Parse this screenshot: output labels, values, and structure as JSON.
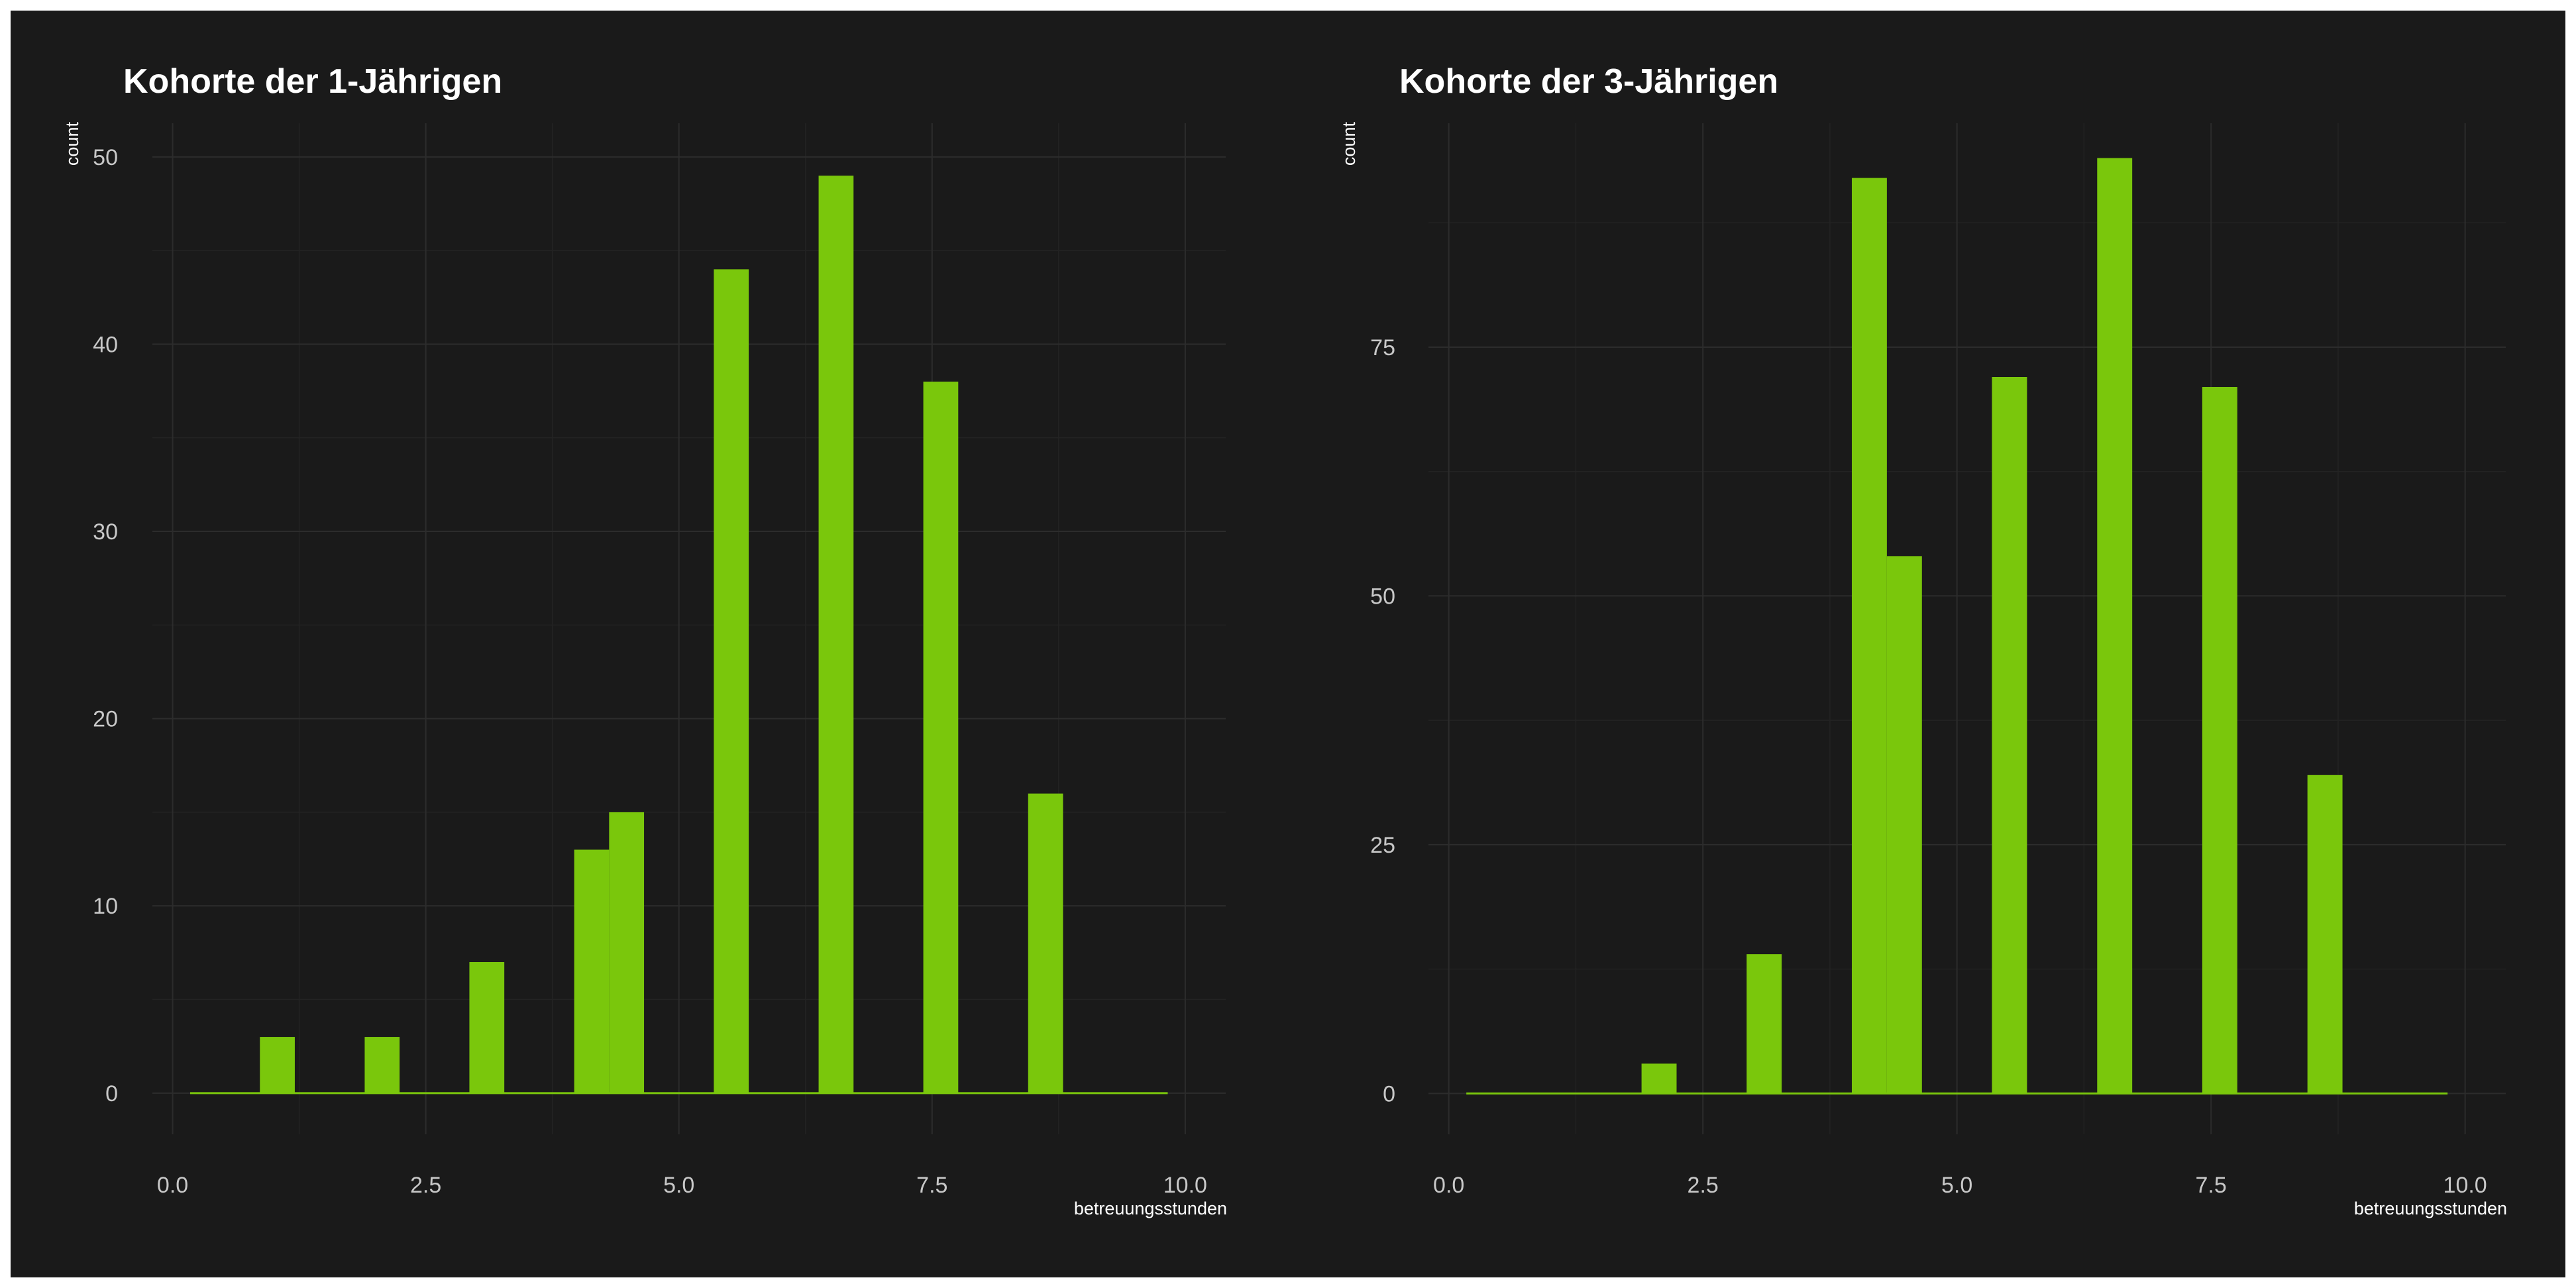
{
  "colors": {
    "background": "#1a1a1a",
    "bar": "#7ac70c",
    "text": "#ffffff",
    "tick_text": "#c8c8c8",
    "grid": "#2c2c2c"
  },
  "chart_data": [
    {
      "type": "bar",
      "title": "Kohorte der 1-Jährigen",
      "xlabel": "betreuungsstunden",
      "ylabel": "count",
      "xlim": [
        0.0,
        10.0
      ],
      "ylim": [
        0,
        50
      ],
      "x_ticks": [
        "0.0",
        "2.5",
        "5.0",
        "7.5",
        "10.0"
      ],
      "y_ticks": [
        "0",
        "10",
        "20",
        "30",
        "40",
        "50"
      ],
      "grid": true,
      "x": [
        0.345,
        0.69,
        1.034,
        1.379,
        1.724,
        2.069,
        2.414,
        2.759,
        3.103,
        3.448,
        3.793,
        4.138,
        4.483,
        4.828,
        5.172,
        5.517,
        5.862,
        6.207,
        6.552,
        6.897,
        7.241,
        7.586,
        7.931,
        8.276,
        8.621,
        8.966,
        9.31,
        9.655
      ],
      "values": [
        0,
        0,
        3,
        0,
        0,
        3,
        0,
        0,
        7,
        0,
        0,
        13,
        15,
        0,
        0,
        44,
        0,
        0,
        49,
        0,
        0,
        38,
        0,
        0,
        16,
        0,
        0,
        0
      ]
    },
    {
      "type": "bar",
      "title": "Kohorte der 3-Jährigen",
      "xlabel": "betreuungsstunden",
      "ylabel": "count",
      "xlim": [
        0.0,
        10.0
      ],
      "ylim": [
        0,
        94
      ],
      "x_ticks": [
        "0.0",
        "2.5",
        "5.0",
        "7.5",
        "10.0"
      ],
      "y_ticks": [
        "0",
        "25",
        "50",
        "75"
      ],
      "grid": true,
      "x": [
        0.345,
        0.69,
        1.034,
        1.379,
        1.724,
        2.069,
        2.414,
        2.759,
        3.103,
        3.448,
        3.793,
        4.138,
        4.483,
        4.828,
        5.172,
        5.517,
        5.862,
        6.207,
        6.552,
        6.897,
        7.241,
        7.586,
        7.931,
        8.276,
        8.621,
        8.966,
        9.31,
        9.655
      ],
      "values": [
        0,
        0,
        0,
        0,
        0,
        3,
        0,
        0,
        14,
        0,
        0,
        92,
        54,
        0,
        0,
        72,
        0,
        0,
        94,
        0,
        0,
        71,
        0,
        0,
        32,
        0,
        0,
        0
      ]
    }
  ]
}
